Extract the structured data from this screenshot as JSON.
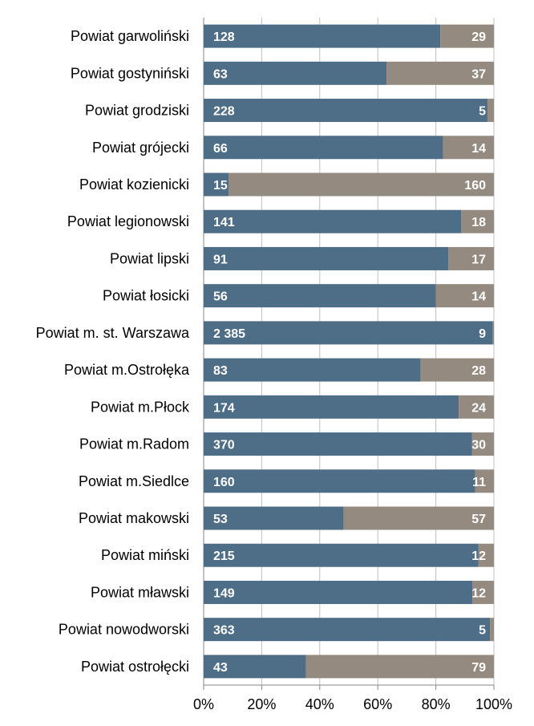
{
  "chart_data": {
    "type": "bar",
    "orientation": "horizontal",
    "stacking": "percent",
    "title": "",
    "xlabel": "",
    "ylabel": "",
    "xlim": [
      0,
      100
    ],
    "gridlines": true,
    "legend": "none",
    "categories": [
      "Powiat garwoliński",
      "Powiat gostyniński",
      "Powiat grodziski",
      "Powiat grójecki",
      "Powiat kozienicki",
      "Powiat legionowski",
      "Powiat lipski",
      "Powiat łosicki",
      "Powiat m. st. Warszawa",
      "Powiat m.Ostrołęka",
      "Powiat m.Płock",
      "Powiat m.Radom",
      "Powiat m.Siedlce",
      "Powiat makowski",
      "Powiat miński",
      "Powiat mławski",
      "Powiat nowodworski",
      "Powiat ostrołęcki"
    ],
    "series": [
      {
        "name": "series-1",
        "color": "#4e6d87",
        "values": [
          128,
          63,
          228,
          66,
          15,
          141,
          91,
          56,
          2385,
          83,
          174,
          370,
          160,
          53,
          215,
          149,
          363,
          43
        ],
        "labels": [
          "128",
          "63",
          "228",
          "66",
          "15",
          "141",
          "91",
          "56",
          "2 385",
          "83",
          "174",
          "370",
          "160",
          "53",
          "215",
          "149",
          "363",
          "43"
        ]
      },
      {
        "name": "series-2",
        "color": "#948a80",
        "values": [
          29,
          37,
          5,
          14,
          160,
          18,
          17,
          14,
          9,
          28,
          24,
          30,
          11,
          57,
          12,
          12,
          5,
          79
        ],
        "labels": [
          "29",
          "37",
          "5",
          "14",
          "160",
          "18",
          "17",
          "14",
          "9",
          "28",
          "24",
          "30",
          "11",
          "57",
          "12",
          "12",
          "5",
          "79"
        ]
      }
    ],
    "x_ticks": [
      0,
      20,
      40,
      60,
      80,
      100
    ],
    "x_tick_labels": [
      "0%",
      "20%",
      "40%",
      "60%",
      "80%",
      "100%"
    ]
  }
}
